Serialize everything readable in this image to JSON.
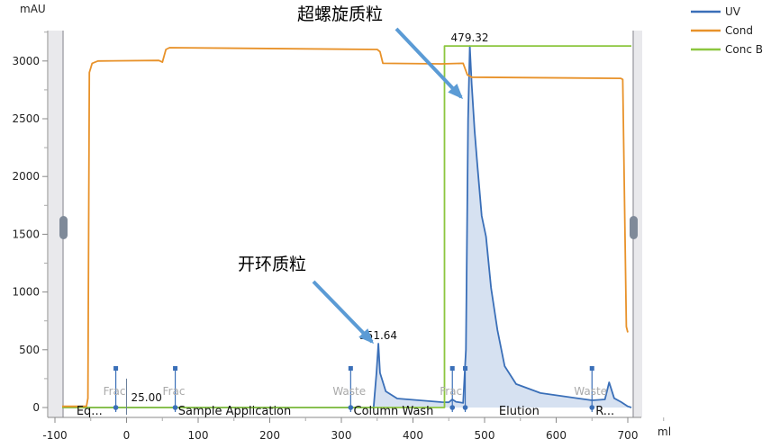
{
  "chart_data": {
    "type": "line",
    "title": "",
    "ylabel": "mAU",
    "xlabel": "ml",
    "xlim": [
      -100,
      705
    ],
    "ylim": [
      0,
      3250
    ],
    "xticks": [
      -100,
      0,
      100,
      200,
      300,
      400,
      500,
      600,
      700
    ],
    "yticks": [
      0,
      500,
      1000,
      1500,
      2000,
      2500,
      3000
    ],
    "grid": false,
    "legend_position": "top-right",
    "series": [
      {
        "name": "UV",
        "color": "#3a6fb8",
        "filled": true,
        "points": [
          [
            -90,
            0
          ],
          [
            345,
            0
          ],
          [
            349,
            300
          ],
          [
            351.64,
            553
          ],
          [
            354,
            300
          ],
          [
            357,
            241
          ],
          [
            362,
            140
          ],
          [
            378,
            78
          ],
          [
            440,
            47
          ],
          [
            450,
            45
          ],
          [
            455,
            70
          ],
          [
            460,
            50
          ],
          [
            470,
            40
          ],
          [
            474,
            500
          ],
          [
            477,
            2500
          ],
          [
            479.32,
            3130
          ],
          [
            482,
            2800
          ],
          [
            486,
            2400
          ],
          [
            490,
            2100
          ],
          [
            496,
            1659
          ],
          [
            502,
            1480
          ],
          [
            509,
            1036
          ],
          [
            518,
            670
          ],
          [
            528,
            358
          ],
          [
            544,
            203
          ],
          [
            578,
            125
          ],
          [
            650,
            62
          ],
          [
            668,
            70
          ],
          [
            674,
            218
          ],
          [
            681,
            80
          ],
          [
            691,
            47
          ],
          [
            700,
            10
          ],
          [
            705,
            0
          ]
        ]
      },
      {
        "name": "Cond",
        "color": "#e8922a",
        "filled": false,
        "points": [
          [
            -90,
            10
          ],
          [
            -56,
            10
          ],
          [
            -54,
            80
          ],
          [
            -52,
            2900
          ],
          [
            -48,
            2980
          ],
          [
            -40,
            3000
          ],
          [
            45,
            3005
          ],
          [
            50,
            2990
          ],
          [
            55,
            3100
          ],
          [
            60,
            3115
          ],
          [
            350,
            3100
          ],
          [
            354,
            3080
          ],
          [
            358,
            2980
          ],
          [
            440,
            2975
          ],
          [
            470,
            2980
          ],
          [
            476,
            2880
          ],
          [
            482,
            2860
          ],
          [
            690,
            2850
          ],
          [
            693,
            2840
          ],
          [
            698,
            700
          ],
          [
            700,
            650
          ]
        ]
      },
      {
        "name": "Conc B",
        "color": "#8cc63f",
        "filled": false,
        "points": [
          [
            -90,
            0
          ],
          [
            444,
            0
          ],
          [
            444,
            3130
          ],
          [
            705,
            3130
          ]
        ]
      }
    ],
    "peak_labels": [
      {
        "x": 351.64,
        "y": 553,
        "text": "351.64"
      },
      {
        "x": 479.32,
        "y": 3130,
        "text": "479.32"
      }
    ],
    "injection_mark": {
      "x": 0,
      "text": "25.00"
    },
    "fraction_marks": [
      {
        "x": -15,
        "text": "Frac"
      },
      {
        "x": 68,
        "text": "Frac"
      },
      {
        "x": 313,
        "text": "Waste"
      },
      {
        "x": 455,
        "text": "Frac"
      },
      {
        "x": 473,
        "text": ""
      },
      {
        "x": 650,
        "text": "Waste"
      }
    ],
    "phases": [
      {
        "x": -70,
        "text": "Eq..."
      },
      {
        "x": 72,
        "text": "Sample Application"
      },
      {
        "x": 317,
        "text": "Column Wash"
      },
      {
        "x": 520,
        "text": "Elution"
      },
      {
        "x": 655,
        "text": "R..."
      }
    ],
    "annotations": [
      {
        "text": "超螺旋质粒",
        "target": "479.32"
      },
      {
        "text": "开环质粒",
        "target": "351.64"
      }
    ]
  }
}
